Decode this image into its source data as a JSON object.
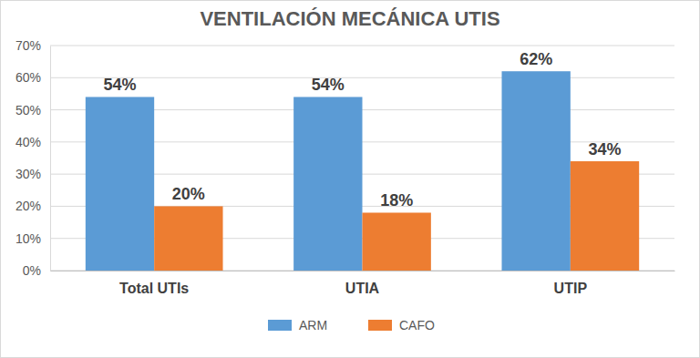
{
  "chart_data": {
    "type": "bar",
    "title": "VENTILACIÓN MECÁNICA UTIS",
    "categories": [
      "Total UTIs",
      "UTIA",
      "UTIP"
    ],
    "series": [
      {
        "name": "ARM",
        "color": "#5b9bd5",
        "values": [
          54,
          54,
          62
        ],
        "value_labels": [
          "54%",
          "54%",
          "62%"
        ]
      },
      {
        "name": "CAFO",
        "color": "#ed7d31",
        "values": [
          20,
          18,
          34
        ],
        "value_labels": [
          "20%",
          "18%",
          "34%"
        ]
      }
    ],
    "ylim": [
      0,
      70
    ],
    "yticks": [
      {
        "value": 0,
        "label": "0%"
      },
      {
        "value": 10,
        "label": "10%"
      },
      {
        "value": 20,
        "label": "20%"
      },
      {
        "value": 30,
        "label": "30%"
      },
      {
        "value": 40,
        "label": "40%"
      },
      {
        "value": 50,
        "label": "50%"
      },
      {
        "value": 60,
        "label": "60%"
      },
      {
        "value": 70,
        "label": "70%"
      }
    ],
    "grid": true,
    "legend": "bottom",
    "data_labels": true
  }
}
